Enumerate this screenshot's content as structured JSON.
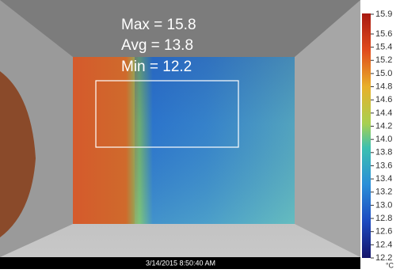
{
  "stats": {
    "max": "Max = 15.8",
    "avg": "Avg = 13.8",
    "min": "Min = 12.2"
  },
  "timestamp": "3/14/2015 8:50:40 AM",
  "colorbar": {
    "lim": [
      12.2,
      15.9
    ],
    "unit": "°C",
    "ticks": [
      15.9,
      15.6,
      15.4,
      15.2,
      {
        "value": 15,
        "label": "15.0"
      },
      14.8,
      14.6,
      14.4,
      14.2,
      {
        "value": 14,
        "label": "14.0"
      },
      13.8,
      13.6,
      13.4,
      13.2,
      {
        "value": 13,
        "label": "13.0"
      },
      12.8,
      12.6,
      12.4,
      12.2
    ]
  }
}
